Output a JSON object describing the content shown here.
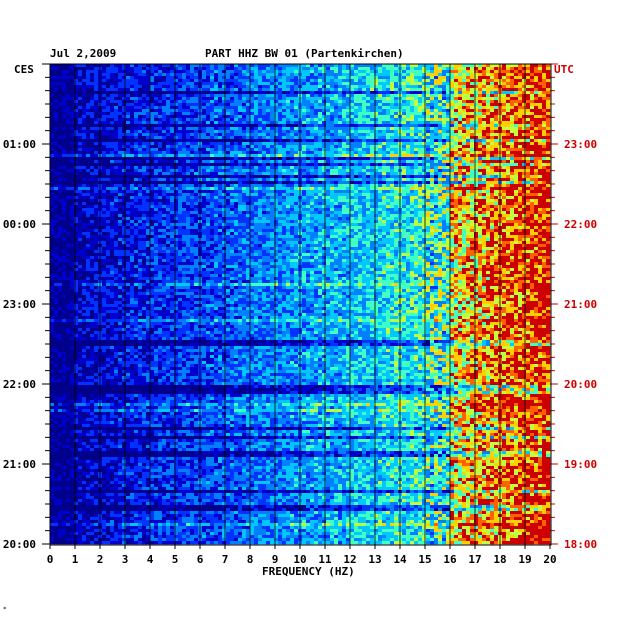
{
  "header": {
    "date": "Jul 2,2009",
    "station": "PART HHZ BW 01 (Partenkirchen)"
  },
  "corners": {
    "left_tz": "CES",
    "right_tz": "UTC"
  },
  "footer_mark": "*",
  "colors": {
    "left_labels": "#000000",
    "right_labels": "#cc0000",
    "background": "#ffffff"
  },
  "chart_data": {
    "type": "heatmap",
    "title": "PART HHZ BW 01 (Partenkirchen)",
    "xlabel": "FREQUENCY (HZ)",
    "ylabel_left": "CES",
    "ylabel_right": "UTC",
    "xlim": [
      0,
      20
    ],
    "x_ticks": [
      0,
      1,
      2,
      3,
      4,
      5,
      6,
      7,
      8,
      9,
      10,
      11,
      12,
      13,
      14,
      15,
      16,
      17,
      18,
      19,
      20
    ],
    "y_ticks_left": [
      {
        "label": "01:00",
        "hours_from_bottom": 5
      },
      {
        "label": "00:00",
        "hours_from_bottom": 4
      },
      {
        "label": "23:00",
        "hours_from_bottom": 3
      },
      {
        "label": "22:00",
        "hours_from_bottom": 2
      },
      {
        "label": "21:00",
        "hours_from_bottom": 1
      },
      {
        "label": "20:00",
        "hours_from_bottom": 0
      }
    ],
    "y_ticks_right": [
      {
        "label": "23:00",
        "hours_from_bottom": 5
      },
      {
        "label": "22:00",
        "hours_from_bottom": 4
      },
      {
        "label": "21:00",
        "hours_from_bottom": 3
      },
      {
        "label": "20:00",
        "hours_from_bottom": 2
      },
      {
        "label": "19:00",
        "hours_from_bottom": 1
      },
      {
        "label": "18:00",
        "hours_from_bottom": 0
      }
    ],
    "time_span_hours": 6,
    "minor_ticks_per_hour": 6,
    "colormap": [
      "#00008b",
      "#0000cd",
      "#0033ff",
      "#0080ff",
      "#00c8ff",
      "#40ffc0",
      "#c0ff40",
      "#ffd000",
      "#ff6000",
      "#cc0000"
    ],
    "intensity_profile": "low energy below 1 Hz, rising steadily with frequency; highest energy between 16 and 20 Hz"
  }
}
